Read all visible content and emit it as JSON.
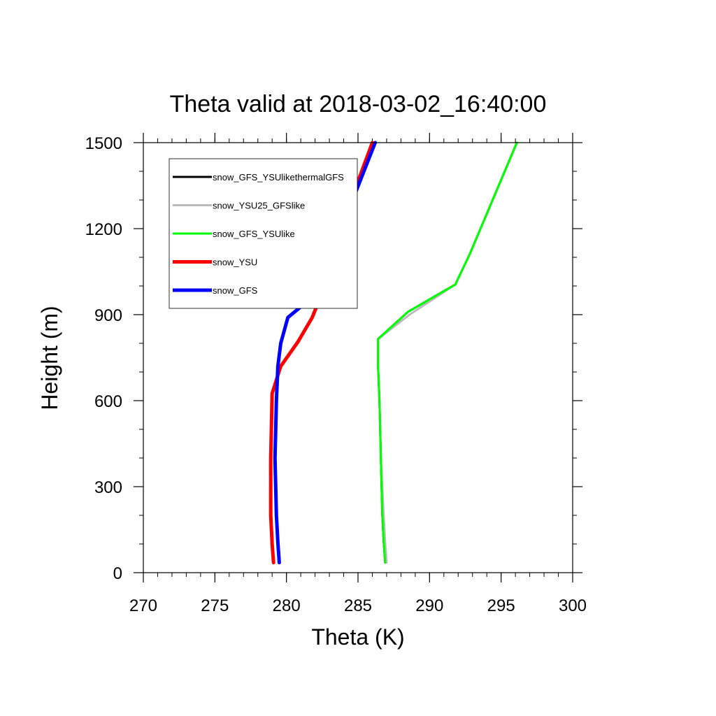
{
  "chart_data": {
    "type": "line",
    "title": "Theta valid at 2018-03-02_16:40:00",
    "xlabel": "Theta (K)",
    "ylabel": "Height (m)",
    "xlim": [
      270,
      300
    ],
    "ylim": [
      0,
      1500
    ],
    "xticks": [
      270,
      275,
      280,
      285,
      290,
      295,
      300
    ],
    "yticks": [
      0,
      300,
      600,
      900,
      1200,
      1500
    ],
    "xtick_labels": [
      "270",
      "275",
      "280",
      "285",
      "290",
      "295",
      "300"
    ],
    "ytick_labels": [
      "0",
      "300",
      "600",
      "900",
      "1200",
      "1500"
    ],
    "grid": false,
    "legend_position": "top-left",
    "series": [
      {
        "name": "snow_GFS_YSUlikethermalGFS",
        "color": "#000000",
        "points": [
          [
            286.9,
            35
          ],
          [
            286.8,
            105
          ],
          [
            286.7,
            200
          ],
          [
            286.6,
            400
          ],
          [
            286.5,
            600
          ],
          [
            286.4,
            720
          ],
          [
            286.4,
            815
          ],
          [
            288.5,
            910
          ],
          [
            291.8,
            1005
          ],
          [
            292.8,
            1110
          ],
          [
            296.1,
            1500
          ]
        ]
      },
      {
        "name": "snow_YSU25_GFSlike",
        "color": "#bbbbbb",
        "points": [
          [
            287.0,
            35
          ],
          [
            286.9,
            105
          ],
          [
            286.8,
            200
          ],
          [
            286.6,
            400
          ],
          [
            286.5,
            600
          ],
          [
            286.4,
            720
          ],
          [
            286.4,
            815
          ],
          [
            288.6,
            900
          ],
          [
            291.8,
            1005
          ],
          [
            292.8,
            1110
          ],
          [
            296.1,
            1500
          ]
        ]
      },
      {
        "name": "snow_GFS_YSUlike",
        "color": "#00ff00",
        "points": [
          [
            286.9,
            35
          ],
          [
            286.8,
            105
          ],
          [
            286.7,
            200
          ],
          [
            286.6,
            400
          ],
          [
            286.5,
            600
          ],
          [
            286.4,
            720
          ],
          [
            286.4,
            815
          ],
          [
            288.5,
            910
          ],
          [
            291.8,
            1005
          ],
          [
            292.8,
            1110
          ],
          [
            296.1,
            1500
          ]
        ]
      },
      {
        "name": "snow_YSU",
        "color": "#ff0000",
        "points": [
          [
            279.1,
            35
          ],
          [
            279.0,
            100
          ],
          [
            278.9,
            200
          ],
          [
            278.9,
            400
          ],
          [
            279.0,
            625
          ],
          [
            279.6,
            720
          ],
          [
            280.8,
            805
          ],
          [
            281.8,
            890
          ],
          [
            282.6,
            990
          ],
          [
            283.4,
            1150
          ],
          [
            286.0,
            1500
          ]
        ]
      },
      {
        "name": "snow_GFS",
        "color": "#0000ff",
        "points": [
          [
            279.5,
            35
          ],
          [
            279.4,
            105
          ],
          [
            279.3,
            200
          ],
          [
            279.2,
            400
          ],
          [
            279.3,
            600
          ],
          [
            279.4,
            720
          ],
          [
            279.6,
            800
          ],
          [
            280.1,
            890
          ],
          [
            282.4,
            985
          ],
          [
            283.2,
            1120
          ],
          [
            286.2,
            1500
          ]
        ]
      }
    ]
  }
}
